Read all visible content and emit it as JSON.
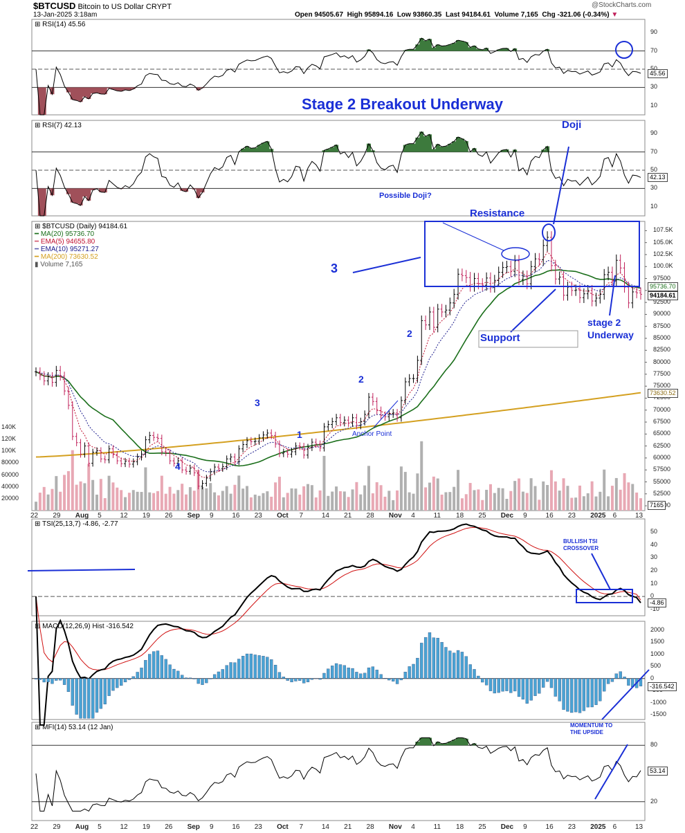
{
  "header": {
    "symbol": "$BTCUSD",
    "name": "Bitcoin to US Dollar",
    "exchange": "CRYPT",
    "date": "13-Jan-2025 3:18am",
    "open": "Open 94505.67",
    "high": "High 95894.16",
    "low": "Low 93860.35",
    "last": "Last 94184.61",
    "volume": "Volume 7,165",
    "chg": "Chg -321.06 (-0.34%)",
    "watermark": "@StockCharts.com"
  },
  "colors": {
    "up": "#000000",
    "down": "#c0205a",
    "ma20": "#1a6e1a",
    "ema5": "#c01030",
    "ema10": "#1a1a8c",
    "ma200": "#d4a020",
    "annot": "#1a2fd6",
    "vol_up": "#b0b0b0",
    "vol_down": "#e8a8b4",
    "macd": "#4aa3d4",
    "fill_green": "#3d7a3d",
    "fill_red": "#a0505a"
  },
  "panels": {
    "rsi14": {
      "label": "RSI(14) 45.56",
      "value": "45.56",
      "ticks": [
        "90",
        "70",
        "50",
        "30",
        "10"
      ]
    },
    "rsi7": {
      "label": "RSI(7) 42.13",
      "value": "42.13",
      "ticks": [
        "90",
        "70",
        "50",
        "30",
        "10"
      ]
    },
    "price": {
      "label": "$BTCUSD (Daily) 94184.61",
      "legend": [
        "MA(20) 95736.70",
        "EMA(5) 94655.80",
        "EMA(10) 95271.27",
        "MA(200) 73630.52",
        "Volume 7,165"
      ],
      "tags": {
        "ma20": "95736.70",
        "last": "94184.61",
        "ma200": "73630.52",
        "volume": "7165"
      },
      "ticks": [
        "107.5K",
        "105.0K",
        "102.5K",
        "100.0K",
        "97500",
        "95000",
        "92500",
        "90000",
        "87500",
        "85000",
        "82500",
        "80000",
        "77500",
        "75000",
        "72500",
        "70000",
        "67500",
        "65000",
        "62500",
        "60000",
        "57500",
        "55000",
        "52500",
        "50000"
      ],
      "vol_ticks": [
        "140K",
        "120K",
        "100K",
        "80000",
        "60000",
        "40000",
        "20000"
      ]
    },
    "tsi": {
      "label": "TSI(25,13,7) -4.86, -2.77",
      "value": "-4.86",
      "ticks": [
        "50",
        "40",
        "30",
        "20",
        "10",
        "0",
        "-10"
      ]
    },
    "macd": {
      "label": "MACD(12,26,9) Hist -316.542",
      "value": "-316.542",
      "ticks": [
        "2000",
        "1500",
        "1000",
        "500",
        "0",
        "-500",
        "-1000",
        "-1500"
      ]
    },
    "mfi": {
      "label": "MFI(14) 53.14 (12 Jan)",
      "value": "53.14",
      "ticks": [
        "80",
        "20"
      ]
    }
  },
  "x_labels": [
    "22",
    "29",
    "Aug",
    "5",
    "12",
    "19",
    "26",
    "Sep",
    "9",
    "16",
    "23",
    "Oct",
    "7",
    "14",
    "21",
    "28",
    "Nov",
    "4",
    "11",
    "18",
    "25",
    "Dec",
    "9",
    "16",
    "23",
    "2025",
    "6",
    "13"
  ],
  "annotations": {
    "title": "Stage 2 Breakout Underway",
    "doji": "Doji",
    "possible_doji": "Possible Doji?",
    "resistance": "Resistance",
    "support": "Support",
    "stage2_a": "stage 2",
    "stage2_b": "Underway",
    "anchor": "Anchor Point",
    "wave1": "1",
    "wave2a": "2",
    "wave2b": "2",
    "wave3a": "3",
    "wave3b": "3",
    "wave4": "4",
    "tsi_note_a": "BULLISH TSI",
    "tsi_note_b": "CROSSOVER",
    "mom_a": "MOMENTUM TO",
    "mom_b": "THE UPSIDE"
  },
  "chart_data": {
    "type": "line",
    "title": "$BTCUSD Bitcoin to US Dollar CRYPT",
    "x_start": "2024-07-22",
    "x_end": "2025-01-13",
    "close": [
      78000,
      77200,
      76100,
      77000,
      75800,
      78300,
      77100,
      74000,
      71000,
      64500,
      63200,
      60800,
      62500,
      58900,
      61200,
      61500,
      59800,
      59600,
      61900,
      60700,
      59400,
      58800,
      59300,
      58700,
      59200,
      60200,
      60800,
      63800,
      64700,
      64300,
      64100,
      61300,
      61100,
      59400,
      58900,
      59400,
      57500,
      57200,
      57900,
      56900,
      54100,
      54700,
      55800,
      57100,
      58100,
      57800,
      58200,
      59800,
      60200,
      59200,
      61900,
      62800,
      63600,
      63400,
      63500,
      64200,
      64800,
      65200,
      64700,
      62900,
      60900,
      61200,
      60800,
      61300,
      62500,
      62400,
      60600,
      62200,
      63300,
      62900,
      62100,
      66500,
      67000,
      67600,
      68400,
      67400,
      67900,
      67300,
      68400,
      66800,
      67600,
      69100,
      72700,
      71800,
      69900,
      68900,
      68600,
      69200,
      69400,
      68400,
      72000,
      75900,
      76600,
      76600,
      80400,
      88700,
      87800,
      90500,
      87300,
      91100,
      90500,
      90900,
      92400,
      94200,
      98400,
      98100,
      97700,
      95900,
      97500,
      96400,
      96100,
      97600,
      95700,
      97100,
      98800,
      99800,
      100000,
      99000,
      101200,
      97300,
      98000,
      96400,
      100000,
      101600,
      101400,
      104400,
      106100,
      100200,
      97400,
      97800,
      94000,
      95700,
      95000,
      95100,
      93500,
      94300,
      95000,
      92800,
      93400,
      94200,
      98300,
      98800,
      97000,
      101300,
      99700,
      95700,
      92400,
      94700,
      94500,
      94200
    ],
    "ma20_end": 95736.7,
    "ema5_end": 94655.8,
    "ema10_end": 95271.27,
    "ma200_start": 60200,
    "ma200_end": 73630.52,
    "last": 94184.61,
    "ylim": [
      49000,
      109000
    ],
    "rsi14_end": 45.56,
    "rsi7_end": 42.13,
    "tsi_end": -4.86,
    "tsi_signal_end": -2.77,
    "macd_hist_end": -316.542,
    "mfi_end": 53.14
  }
}
